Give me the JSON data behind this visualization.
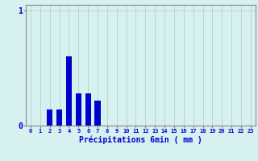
{
  "title": "",
  "xlabel": "Précipitations 6min ( mm )",
  "ylabel": "",
  "background_color": "#d7f0f0",
  "bar_color": "#0000cc",
  "grid_color": "#b0c8c8",
  "axis_color": "#888888",
  "text_color": "#0000cc",
  "ylim": [
    0,
    1.05
  ],
  "xlim": [
    -0.5,
    23.5
  ],
  "yticks": [
    0,
    1
  ],
  "xtick_labels": [
    "0",
    "1",
    "2",
    "3",
    "4",
    "5",
    "6",
    "7",
    "8",
    "9",
    "10",
    "11",
    "12",
    "13",
    "14",
    "15",
    "16",
    "17",
    "18",
    "19",
    "20",
    "21",
    "22",
    "23"
  ],
  "categories": [
    0,
    1,
    2,
    3,
    4,
    5,
    6,
    7,
    8,
    9,
    10,
    11,
    12,
    13,
    14,
    15,
    16,
    17,
    18,
    19,
    20,
    21,
    22,
    23
  ],
  "values": [
    0,
    0,
    0.14,
    0.14,
    0.6,
    0.28,
    0.28,
    0.22,
    0,
    0,
    0,
    0,
    0,
    0,
    0,
    0,
    0,
    0,
    0,
    0,
    0,
    0,
    0,
    0
  ]
}
